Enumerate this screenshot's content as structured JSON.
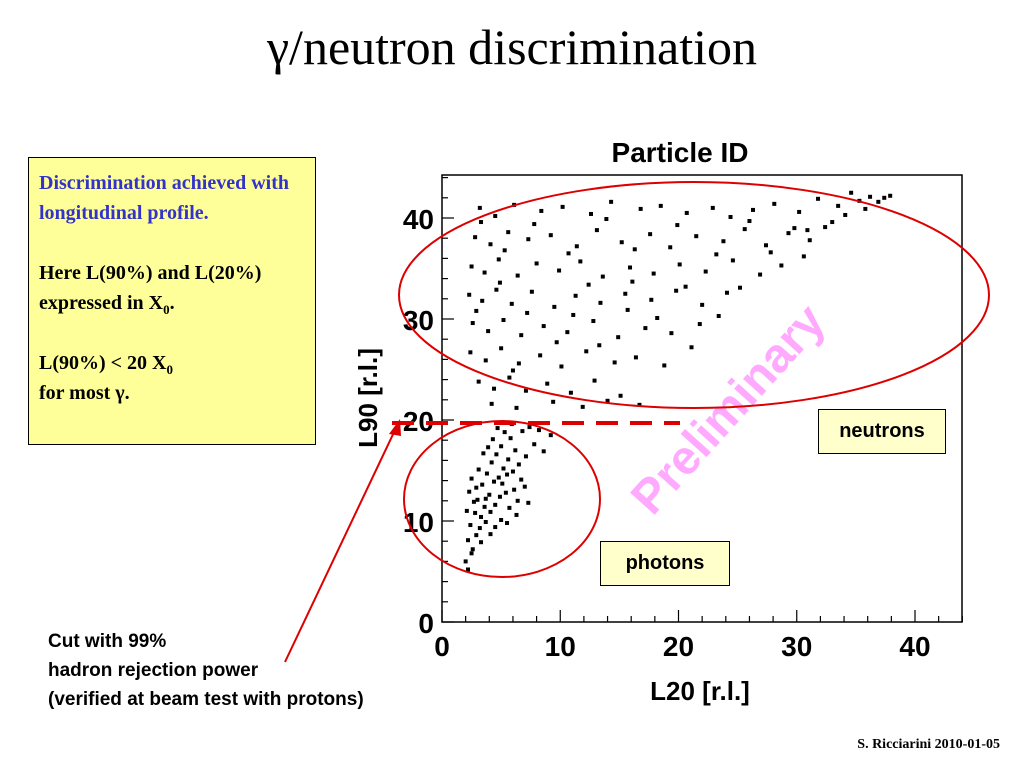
{
  "slide": {
    "title": "γ/neutron discrimination",
    "credit": "S. Ricciarini 2010-01-05"
  },
  "note_box": {
    "line1": "Discrimination achieved with longitudinal profile.",
    "line2_pre": "Here L(90%) and L(20%) expressed in X",
    "line2_sub": "0",
    "line2_post": ".",
    "line3_pre": "L(90%) < 20 X",
    "line3_sub": "0",
    "line3_post": "for most γ."
  },
  "labels": {
    "neutrons": "neutrons",
    "photons": "photons"
  },
  "cut_annotation": {
    "line1": "Cut with 99%",
    "line2": "hadron rejection power",
    "line3": "(verified at beam test with protons)"
  },
  "chart_data": {
    "type": "scatter",
    "title": "Particle ID",
    "xlabel": "L20 [r.l.]",
    "ylabel": "L90 [r.l.]",
    "xlim": [
      0,
      44
    ],
    "ylim": [
      0,
      45
    ],
    "xticks": [
      0,
      10,
      20,
      30,
      40
    ],
    "yticks": [
      0,
      10,
      20,
      30,
      40
    ],
    "watermark": "Preliminary",
    "cut_line_y": 20,
    "colors": {
      "points": "#000000",
      "ellipse": "#dd0000",
      "cut": "#dd0000",
      "watermark": "#ffaaff"
    },
    "series": [
      {
        "group": "neutrons",
        "points": [
          [
            3.2,
            41.0
          ],
          [
            4.5,
            40.2
          ],
          [
            6.1,
            41.3
          ],
          [
            8.4,
            40.7
          ],
          [
            10.2,
            41.1
          ],
          [
            12.6,
            40.4
          ],
          [
            14.3,
            41.6
          ],
          [
            16.8,
            40.9
          ],
          [
            18.5,
            41.2
          ],
          [
            20.7,
            40.5
          ],
          [
            22.9,
            41.0
          ],
          [
            24.4,
            40.1
          ],
          [
            26.3,
            40.8
          ],
          [
            28.1,
            41.4
          ],
          [
            30.2,
            40.6
          ],
          [
            31.8,
            41.9
          ],
          [
            33.5,
            41.2
          ],
          [
            34.6,
            42.5
          ],
          [
            35.3,
            41.7
          ],
          [
            36.2,
            42.1
          ],
          [
            37.4,
            42.0
          ],
          [
            2.8,
            38.1
          ],
          [
            4.1,
            37.4
          ],
          [
            5.6,
            38.6
          ],
          [
            7.3,
            37.9
          ],
          [
            9.2,
            38.3
          ],
          [
            11.4,
            37.2
          ],
          [
            13.1,
            38.8
          ],
          [
            15.2,
            37.6
          ],
          [
            17.6,
            38.4
          ],
          [
            19.3,
            37.1
          ],
          [
            21.5,
            38.2
          ],
          [
            23.8,
            37.7
          ],
          [
            25.6,
            38.9
          ],
          [
            27.4,
            37.3
          ],
          [
            29.3,
            38.5
          ],
          [
            31.1,
            37.8
          ],
          [
            33.0,
            39.6
          ],
          [
            34.1,
            40.3
          ],
          [
            32.4,
            39.1
          ],
          [
            2.5,
            35.2
          ],
          [
            3.6,
            34.6
          ],
          [
            4.8,
            35.9
          ],
          [
            6.4,
            34.3
          ],
          [
            8.0,
            35.5
          ],
          [
            9.9,
            34.8
          ],
          [
            11.7,
            35.7
          ],
          [
            13.6,
            34.2
          ],
          [
            15.9,
            35.1
          ],
          [
            17.9,
            34.5
          ],
          [
            20.1,
            35.4
          ],
          [
            22.3,
            34.7
          ],
          [
            24.6,
            35.8
          ],
          [
            26.9,
            34.4
          ],
          [
            28.7,
            35.3
          ],
          [
            30.6,
            36.2
          ],
          [
            2.3,
            32.4
          ],
          [
            3.4,
            31.8
          ],
          [
            4.6,
            32.9
          ],
          [
            5.9,
            31.5
          ],
          [
            7.6,
            32.7
          ],
          [
            9.5,
            31.2
          ],
          [
            11.3,
            32.3
          ],
          [
            13.4,
            31.6
          ],
          [
            15.5,
            32.5
          ],
          [
            17.7,
            31.9
          ],
          [
            19.8,
            32.8
          ],
          [
            22.0,
            31.4
          ],
          [
            24.1,
            32.6
          ],
          [
            2.6,
            29.6
          ],
          [
            3.9,
            28.8
          ],
          [
            5.2,
            29.9
          ],
          [
            6.7,
            28.4
          ],
          [
            8.6,
            29.3
          ],
          [
            10.6,
            28.7
          ],
          [
            12.8,
            29.8
          ],
          [
            14.9,
            28.2
          ],
          [
            17.2,
            29.1
          ],
          [
            19.4,
            28.6
          ],
          [
            21.8,
            29.5
          ],
          [
            2.4,
            26.7
          ],
          [
            3.7,
            25.9
          ],
          [
            5.0,
            27.1
          ],
          [
            6.5,
            25.6
          ],
          [
            8.3,
            26.4
          ],
          [
            10.1,
            25.3
          ],
          [
            12.2,
            26.8
          ],
          [
            14.6,
            25.7
          ],
          [
            16.4,
            26.2
          ],
          [
            18.8,
            25.4
          ],
          [
            3.1,
            23.8
          ],
          [
            4.4,
            23.1
          ],
          [
            5.7,
            24.2
          ],
          [
            7.1,
            22.9
          ],
          [
            8.9,
            23.6
          ],
          [
            10.9,
            22.7
          ],
          [
            12.9,
            23.9
          ],
          [
            15.1,
            22.4
          ],
          [
            4.2,
            21.6
          ],
          [
            6.3,
            21.2
          ],
          [
            9.4,
            21.8
          ],
          [
            11.9,
            21.3
          ],
          [
            14.0,
            21.9
          ],
          [
            16.7,
            21.5
          ],
          [
            3.3,
            39.6
          ],
          [
            5.3,
            36.8
          ],
          [
            7.8,
            39.4
          ],
          [
            10.7,
            36.5
          ],
          [
            13.9,
            39.9
          ],
          [
            16.3,
            36.9
          ],
          [
            19.9,
            39.3
          ],
          [
            23.2,
            36.4
          ],
          [
            26.0,
            39.7
          ],
          [
            29.8,
            39.0
          ],
          [
            12.4,
            33.4
          ],
          [
            16.1,
            33.7
          ],
          [
            20.6,
            33.2
          ],
          [
            7.2,
            30.6
          ],
          [
            11.1,
            30.4
          ],
          [
            15.7,
            30.9
          ],
          [
            18.2,
            30.1
          ],
          [
            4.9,
            33.6
          ],
          [
            9.7,
            27.7
          ],
          [
            13.3,
            27.4
          ],
          [
            6.0,
            24.9
          ],
          [
            2.9,
            30.8
          ],
          [
            35.8,
            40.9
          ],
          [
            36.9,
            41.6
          ],
          [
            37.9,
            42.2
          ],
          [
            25.2,
            33.1
          ],
          [
            27.8,
            36.6
          ],
          [
            30.9,
            38.8
          ],
          [
            21.1,
            27.2
          ],
          [
            23.4,
            30.3
          ]
        ]
      },
      {
        "group": "photons",
        "points": [
          [
            2.0,
            6.0
          ],
          [
            2.2,
            8.1
          ],
          [
            2.4,
            9.6
          ],
          [
            2.6,
            7.2
          ],
          [
            2.8,
            10.8
          ],
          [
            3.0,
            12.1
          ],
          [
            3.2,
            9.3
          ],
          [
            3.4,
            13.6
          ],
          [
            3.6,
            11.4
          ],
          [
            3.8,
            14.7
          ],
          [
            4.0,
            12.6
          ],
          [
            4.2,
            15.8
          ],
          [
            4.4,
            13.9
          ],
          [
            4.6,
            16.6
          ],
          [
            4.8,
            14.3
          ],
          [
            5.0,
            17.4
          ],
          [
            5.2,
            15.2
          ],
          [
            5.4,
            12.8
          ],
          [
            5.6,
            16.1
          ],
          [
            5.8,
            18.2
          ],
          [
            6.0,
            14.9
          ],
          [
            6.2,
            17.0
          ],
          [
            6.5,
            15.6
          ],
          [
            6.8,
            18.9
          ],
          [
            7.1,
            16.4
          ],
          [
            7.4,
            19.3
          ],
          [
            7.8,
            17.6
          ],
          [
            8.2,
            19.0
          ],
          [
            8.6,
            16.9
          ],
          [
            9.2,
            18.5
          ],
          [
            2.1,
            11.0
          ],
          [
            2.3,
            12.9
          ],
          [
            2.5,
            14.2
          ],
          [
            2.7,
            11.9
          ],
          [
            2.9,
            13.3
          ],
          [
            3.1,
            15.1
          ],
          [
            3.3,
            10.4
          ],
          [
            3.5,
            16.7
          ],
          [
            3.7,
            12.2
          ],
          [
            3.9,
            17.3
          ],
          [
            4.1,
            10.9
          ],
          [
            4.3,
            18.1
          ],
          [
            4.5,
            11.6
          ],
          [
            4.7,
            19.2
          ],
          [
            4.9,
            12.4
          ],
          [
            5.1,
            13.7
          ],
          [
            5.3,
            18.8
          ],
          [
            5.5,
            14.6
          ],
          [
            5.7,
            11.3
          ],
          [
            5.9,
            19.6
          ],
          [
            6.1,
            13.1
          ],
          [
            6.4,
            12.0
          ],
          [
            6.7,
            14.1
          ],
          [
            7.0,
            13.4
          ],
          [
            7.3,
            11.8
          ],
          [
            2.2,
            5.2
          ],
          [
            2.5,
            6.8
          ],
          [
            2.9,
            8.6
          ],
          [
            3.3,
            7.9
          ],
          [
            3.7,
            9.9
          ],
          [
            4.1,
            8.7
          ],
          [
            4.5,
            9.4
          ],
          [
            5.0,
            10.1
          ],
          [
            5.5,
            9.8
          ],
          [
            6.3,
            10.6
          ]
        ]
      }
    ]
  }
}
